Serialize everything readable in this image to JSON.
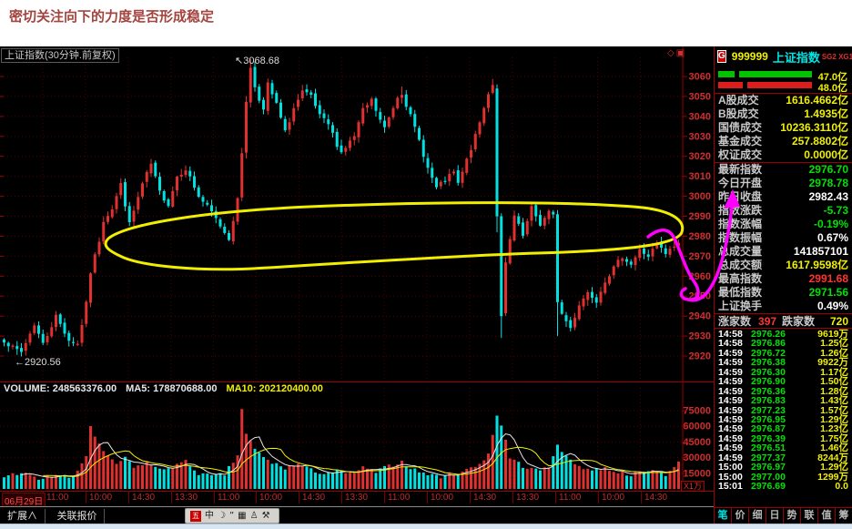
{
  "headline": "密切关注向下的力度是否形成稳定",
  "chart": {
    "pane_title": "上证指数(30分钟.前复权)",
    "corner_icons": [
      "◇",
      "▣"
    ],
    "high_annotation": "↖3068.68",
    "low_annotation": "←2920.56",
    "volume_header": [
      {
        "text": "VOLUME: 248563376.00",
        "color": "#e8e8e8"
      },
      {
        "text": "MA5: 178870688.00",
        "color": "#e8e8e8"
      },
      {
        "text": "MA10: 202120400.00",
        "color": "#f0f000"
      }
    ],
    "volume_unit_label": "X1万",
    "period_label": "30分钟"
  },
  "chart_data": {
    "type": "candlestick",
    "title": "上证指数 30分钟 K线 + 成交量",
    "price_axis_ticks": [
      3060,
      3050,
      3040,
      3030,
      3020,
      3010,
      3000,
      2990,
      2980,
      2970,
      2960,
      2950,
      2940,
      2930,
      2920
    ],
    "volume_axis_ticks": [
      75000,
      60000,
      45000,
      30000,
      15000
    ],
    "x_axis_labels": [
      "06月29日",
      "11:00",
      "10:00",
      "14:30",
      "13:30",
      "11:00",
      "10:00",
      "14:30",
      "13:30",
      "11:00",
      "10:00",
      "14:30",
      "13:30",
      "11:00",
      "10:00",
      "14:30"
    ],
    "n_candles": 157,
    "extremes": {
      "high": 3068.68,
      "low": 2920.56
    },
    "last_close": 2976.7,
    "close_anchors": [
      [
        0,
        2928
      ],
      [
        2,
        2924
      ],
      [
        4,
        2922
      ],
      [
        7,
        2936
      ],
      [
        9,
        2926
      ],
      [
        12,
        2940
      ],
      [
        15,
        2928
      ],
      [
        17,
        2926
      ],
      [
        19,
        2946
      ],
      [
        20,
        2962
      ],
      [
        22,
        2978
      ],
      [
        23,
        2988
      ],
      [
        25,
        2994
      ],
      [
        27,
        3006
      ],
      [
        29,
        2986
      ],
      [
        32,
        3006
      ],
      [
        34,
        3016
      ],
      [
        36,
        3002
      ],
      [
        38,
        2996
      ],
      [
        40,
        3010
      ],
      [
        42,
        3014
      ],
      [
        45,
        3000
      ],
      [
        48,
        2992
      ],
      [
        51,
        2982
      ],
      [
        52,
        2979
      ],
      [
        54,
        2998
      ],
      [
        55,
        3022
      ],
      [
        56,
        3048
      ],
      [
        57,
        3064
      ],
      [
        58,
        3055
      ],
      [
        60,
        3043
      ],
      [
        61,
        3056
      ],
      [
        63,
        3046
      ],
      [
        65,
        3032
      ],
      [
        67,
        3044
      ],
      [
        69,
        3052
      ],
      [
        71,
        3050
      ],
      [
        73,
        3040
      ],
      [
        75,
        3036
      ],
      [
        77,
        3026
      ],
      [
        78,
        3022
      ],
      [
        81,
        3030
      ],
      [
        83,
        3043
      ],
      [
        85,
        3048
      ],
      [
        87,
        3038
      ],
      [
        88,
        3034
      ],
      [
        91,
        3050
      ],
      [
        92,
        3052
      ],
      [
        94,
        3040
      ],
      [
        96,
        3028
      ],
      [
        98,
        3014
      ],
      [
        100,
        3004
      ],
      [
        102,
        3008
      ],
      [
        104,
        3012
      ],
      [
        105,
        3006
      ],
      [
        107,
        3018
      ],
      [
        109,
        3030
      ],
      [
        111,
        3044
      ],
      [
        112,
        3052
      ],
      [
        113,
        3056
      ],
      [
        114,
        2990
      ],
      [
        115,
        2940
      ],
      [
        116,
        2966
      ],
      [
        118,
        2990
      ],
      [
        120,
        2980
      ],
      [
        122,
        2994
      ],
      [
        124,
        2986
      ],
      [
        126,
        2992
      ],
      [
        127,
        2990
      ],
      [
        128,
        2947
      ],
      [
        129,
        2941
      ],
      [
        131,
        2934
      ],
      [
        133,
        2946
      ],
      [
        135,
        2952
      ],
      [
        137,
        2948
      ],
      [
        139,
        2958
      ],
      [
        141,
        2964
      ],
      [
        143,
        2970
      ],
      [
        145,
        2966
      ],
      [
        147,
        2973
      ],
      [
        149,
        2970
      ],
      [
        151,
        2976
      ],
      [
        153,
        2971
      ],
      [
        155,
        2975
      ],
      [
        156,
        2976.7
      ]
    ],
    "volume_anchors": [
      [
        0,
        12000
      ],
      [
        4,
        16000
      ],
      [
        8,
        9000
      ],
      [
        12,
        14000
      ],
      [
        16,
        10000
      ],
      [
        19,
        32000
      ],
      [
        20,
        60000
      ],
      [
        22,
        42000
      ],
      [
        24,
        30000
      ],
      [
        26,
        24000
      ],
      [
        28,
        30000
      ],
      [
        30,
        20000
      ],
      [
        33,
        26000
      ],
      [
        36,
        18000
      ],
      [
        39,
        22000
      ],
      [
        42,
        26000
      ],
      [
        45,
        15000
      ],
      [
        48,
        12000
      ],
      [
        51,
        14000
      ],
      [
        54,
        32000
      ],
      [
        55,
        77000
      ],
      [
        56,
        52000
      ],
      [
        58,
        38000
      ],
      [
        60,
        30000
      ],
      [
        62,
        25000
      ],
      [
        65,
        20000
      ],
      [
        68,
        24000
      ],
      [
        71,
        18000
      ],
      [
        74,
        15000
      ],
      [
        77,
        17000
      ],
      [
        80,
        14000
      ],
      [
        83,
        20000
      ],
      [
        86,
        16000
      ],
      [
        89,
        22000
      ],
      [
        92,
        26000
      ],
      [
        95,
        18000
      ],
      [
        98,
        14000
      ],
      [
        101,
        12000
      ],
      [
        104,
        15000
      ],
      [
        107,
        18000
      ],
      [
        110,
        24000
      ],
      [
        112,
        34000
      ],
      [
        114,
        70000
      ],
      [
        115,
        62000
      ],
      [
        117,
        30000
      ],
      [
        120,
        22000
      ],
      [
        123,
        18000
      ],
      [
        126,
        20000
      ],
      [
        128,
        44000
      ],
      [
        130,
        30000
      ],
      [
        133,
        22000
      ],
      [
        136,
        18000
      ],
      [
        139,
        20000
      ],
      [
        142,
        16000
      ],
      [
        145,
        14000
      ],
      [
        148,
        16000
      ],
      [
        151,
        18000
      ],
      [
        153,
        14000
      ],
      [
        155,
        20000
      ],
      [
        156,
        24856
      ]
    ],
    "candle_overrides": {
      "3": {
        "low": 2920.56
      },
      "57": {
        "high": 3068.68
      },
      "92": {
        "high": 3055
      },
      "114": {
        "open": 3054,
        "high": 3056,
        "close": 2990,
        "low": 2982
      },
      "115": {
        "open": 2990,
        "close": 2940,
        "low": 2929
      },
      "128": {
        "open": 2991,
        "close": 2947,
        "low": 2930
      },
      "156": {
        "close": 2976.7
      }
    },
    "colors": {
      "up": "#e03030",
      "down": "#00e2e2",
      "grid": "#5a0000",
      "vgrid": "#4a0000",
      "frame": "#9c0000",
      "axis_text": "#cf2e2e",
      "ma5": "#e6e6e6",
      "ma10": "#f0f000"
    },
    "annotations": {
      "ellipse": {
        "color": "#f2ee00",
        "meaning": "consolidation zone circled by hand"
      },
      "arrow": {
        "color": "#ff00ff",
        "points_to": "昨日收盘"
      }
    }
  },
  "panel": {
    "header": {
      "badge": "G",
      "code": "999999",
      "name": "上证指数",
      "tags": "SG2 XG1"
    },
    "strength_bars": [
      {
        "value": "47.0亿",
        "color": "#00c400",
        "seg1": 18,
        "seg2": 80
      },
      {
        "value": "48.0亿",
        "color": "#dc1e1e",
        "seg1": 27,
        "seg2": 71
      }
    ],
    "stats_volume": [
      {
        "label": "A股成交",
        "value": "1616.4662亿",
        "color": "yellow"
      },
      {
        "label": "B股成交",
        "value": "1.4935亿",
        "color": "yellow"
      },
      {
        "label": "国债成交",
        "value": "10236.3110亿",
        "color": "yellow"
      },
      {
        "label": "基金成交",
        "value": "257.8802亿",
        "color": "yellow"
      },
      {
        "label": "权证成交",
        "value": "0.0000亿",
        "color": "yellow"
      }
    ],
    "stats_index": [
      {
        "label": "最新指数",
        "value": "2976.70",
        "color": "green"
      },
      {
        "label": "今日开盘",
        "value": "2978.78",
        "color": "green"
      },
      {
        "label": "昨日收盘",
        "value": "2982.43",
        "color": "white"
      },
      {
        "label": "指数涨跌",
        "value": "-5.73",
        "color": "green"
      },
      {
        "label": "指数涨幅",
        "value": "-0.19%",
        "color": "green"
      },
      {
        "label": "指数振幅",
        "value": "0.67%",
        "color": "white"
      },
      {
        "label": "总成交量",
        "value": "141857101",
        "color": "white"
      },
      {
        "label": "总成交额",
        "value": "1617.9598亿",
        "color": "yellow"
      },
      {
        "label": "最高指数",
        "value": "2991.68",
        "color": "red"
      },
      {
        "label": "最低指数",
        "value": "2971.56",
        "color": "green"
      },
      {
        "label": "上证换手",
        "value": "0.49%",
        "color": "white"
      }
    ],
    "breadth": {
      "up_label": "涨家数",
      "up_value": "397",
      "down_label": "跌家数",
      "down_value": "720"
    },
    "ticks": [
      [
        "14:58",
        "2976.26",
        "9619万"
      ],
      [
        "14:58",
        "2976.86",
        "1.25亿"
      ],
      [
        "14:59",
        "2976.72",
        "1.26亿"
      ],
      [
        "14:59",
        "2976.38",
        "9922万"
      ],
      [
        "14:59",
        "2976.30",
        "1.17亿"
      ],
      [
        "14:59",
        "2976.90",
        "1.50亿"
      ],
      [
        "14:59",
        "2976.36",
        "1.28亿"
      ],
      [
        "14:59",
        "2976.83",
        "1.43亿"
      ],
      [
        "14:59",
        "2977.23",
        "1.57亿"
      ],
      [
        "14:59",
        "2976.95",
        "1.29亿"
      ],
      [
        "14:59",
        "2976.87",
        "1.23亿"
      ],
      [
        "14:59",
        "2976.39",
        "1.75亿"
      ],
      [
        "14:59",
        "2976.51",
        "1.46亿"
      ],
      [
        "14:59",
        "2977.37",
        "8244万"
      ],
      [
        "15:00",
        "2976.97",
        "1.29亿"
      ],
      [
        "15:00",
        "2977.00",
        "1299万"
      ],
      [
        "15:01",
        "2976.69",
        "0.0"
      ]
    ],
    "tabs": [
      {
        "label": "笔",
        "active": true
      },
      {
        "label": "价",
        "active": false
      },
      {
        "label": "细",
        "active": false
      },
      {
        "label": "日",
        "active": false
      },
      {
        "label": "势",
        "active": false
      },
      {
        "label": "联",
        "active": false
      },
      {
        "label": "值",
        "active": false
      },
      {
        "label": "筹",
        "active": false
      }
    ]
  },
  "statusbar": {
    "items": [
      "扩展∧",
      "关联报价"
    ],
    "ime_icons": [
      "五",
      "中",
      "☽",
      "”",
      "▦",
      "♙",
      "⚒"
    ]
  }
}
